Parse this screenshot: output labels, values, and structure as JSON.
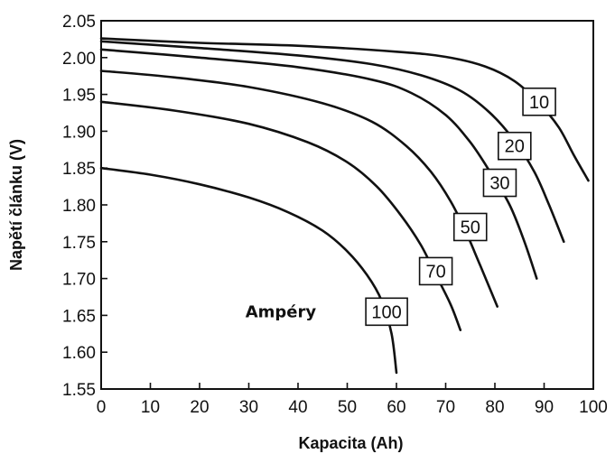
{
  "chart_data": {
    "type": "line",
    "xlabel": "Kapacita (Ah)",
    "ylabel": "Napětí článku (V)",
    "xlim": [
      0,
      100
    ],
    "ylim": [
      1.55,
      2.05
    ],
    "xticks": [
      "0",
      "10",
      "20",
      "30",
      "40",
      "50",
      "60",
      "70",
      "80",
      "90",
      "100"
    ],
    "yticks": [
      "1.55",
      "1.60",
      "1.65",
      "1.70",
      "1.75",
      "1.80",
      "1.85",
      "1.90",
      "1.95",
      "2.00",
      "2.05"
    ],
    "grid": false,
    "annotation": "Ampéry",
    "series": [
      {
        "label": "10",
        "label_at": [
          89,
          1.94
        ],
        "points": [
          [
            0,
            2.026
          ],
          [
            20,
            2.02
          ],
          [
            40,
            2.016
          ],
          [
            60,
            2.008
          ],
          [
            70,
            2.001
          ],
          [
            78,
            1.988
          ],
          [
            84,
            1.968
          ],
          [
            89,
            1.938
          ],
          [
            93,
            1.905
          ],
          [
            96,
            1.868
          ],
          [
            99,
            1.833
          ]
        ]
      },
      {
        "label": "20",
        "label_at": [
          84,
          1.88
        ],
        "points": [
          [
            0,
            2.022
          ],
          [
            20,
            2.013
          ],
          [
            40,
            2.003
          ],
          [
            55,
            1.991
          ],
          [
            65,
            1.976
          ],
          [
            73,
            1.955
          ],
          [
            79,
            1.925
          ],
          [
            84,
            1.887
          ],
          [
            88,
            1.845
          ],
          [
            91,
            1.8
          ],
          [
            94,
            1.75
          ]
        ]
      },
      {
        "label": "30",
        "label_at": [
          81,
          1.83
        ],
        "points": [
          [
            0,
            2.011
          ],
          [
            20,
            2.0
          ],
          [
            40,
            1.987
          ],
          [
            55,
            1.97
          ],
          [
            63,
            1.952
          ],
          [
            70,
            1.922
          ],
          [
            75,
            1.885
          ],
          [
            79,
            1.845
          ],
          [
            83,
            1.8
          ],
          [
            86,
            1.75
          ],
          [
            88.5,
            1.7
          ]
        ]
      },
      {
        "label": "50",
        "label_at": [
          75,
          1.77
        ],
        "points": [
          [
            0,
            1.982
          ],
          [
            15,
            1.973
          ],
          [
            30,
            1.96
          ],
          [
            45,
            1.938
          ],
          [
            55,
            1.913
          ],
          [
            62,
            1.88
          ],
          [
            67,
            1.845
          ],
          [
            71,
            1.805
          ],
          [
            74,
            1.765
          ],
          [
            77,
            1.718
          ],
          [
            80.5,
            1.662
          ]
        ]
      },
      {
        "label": "70",
        "label_at": [
          68,
          1.71
        ],
        "points": [
          [
            0,
            1.94
          ],
          [
            15,
            1.928
          ],
          [
            30,
            1.91
          ],
          [
            42,
            1.885
          ],
          [
            50,
            1.858
          ],
          [
            56,
            1.825
          ],
          [
            61,
            1.785
          ],
          [
            65,
            1.745
          ],
          [
            68,
            1.705
          ],
          [
            71,
            1.665
          ],
          [
            73,
            1.63
          ]
        ]
      },
      {
        "label": "100",
        "label_at": [
          58,
          1.655
        ],
        "points": [
          [
            0,
            1.85
          ],
          [
            10,
            1.841
          ],
          [
            20,
            1.828
          ],
          [
            30,
            1.81
          ],
          [
            38,
            1.79
          ],
          [
            45,
            1.765
          ],
          [
            50,
            1.737
          ],
          [
            54,
            1.705
          ],
          [
            57,
            1.67
          ],
          [
            59,
            1.625
          ],
          [
            60,
            1.572
          ]
        ]
      }
    ]
  }
}
